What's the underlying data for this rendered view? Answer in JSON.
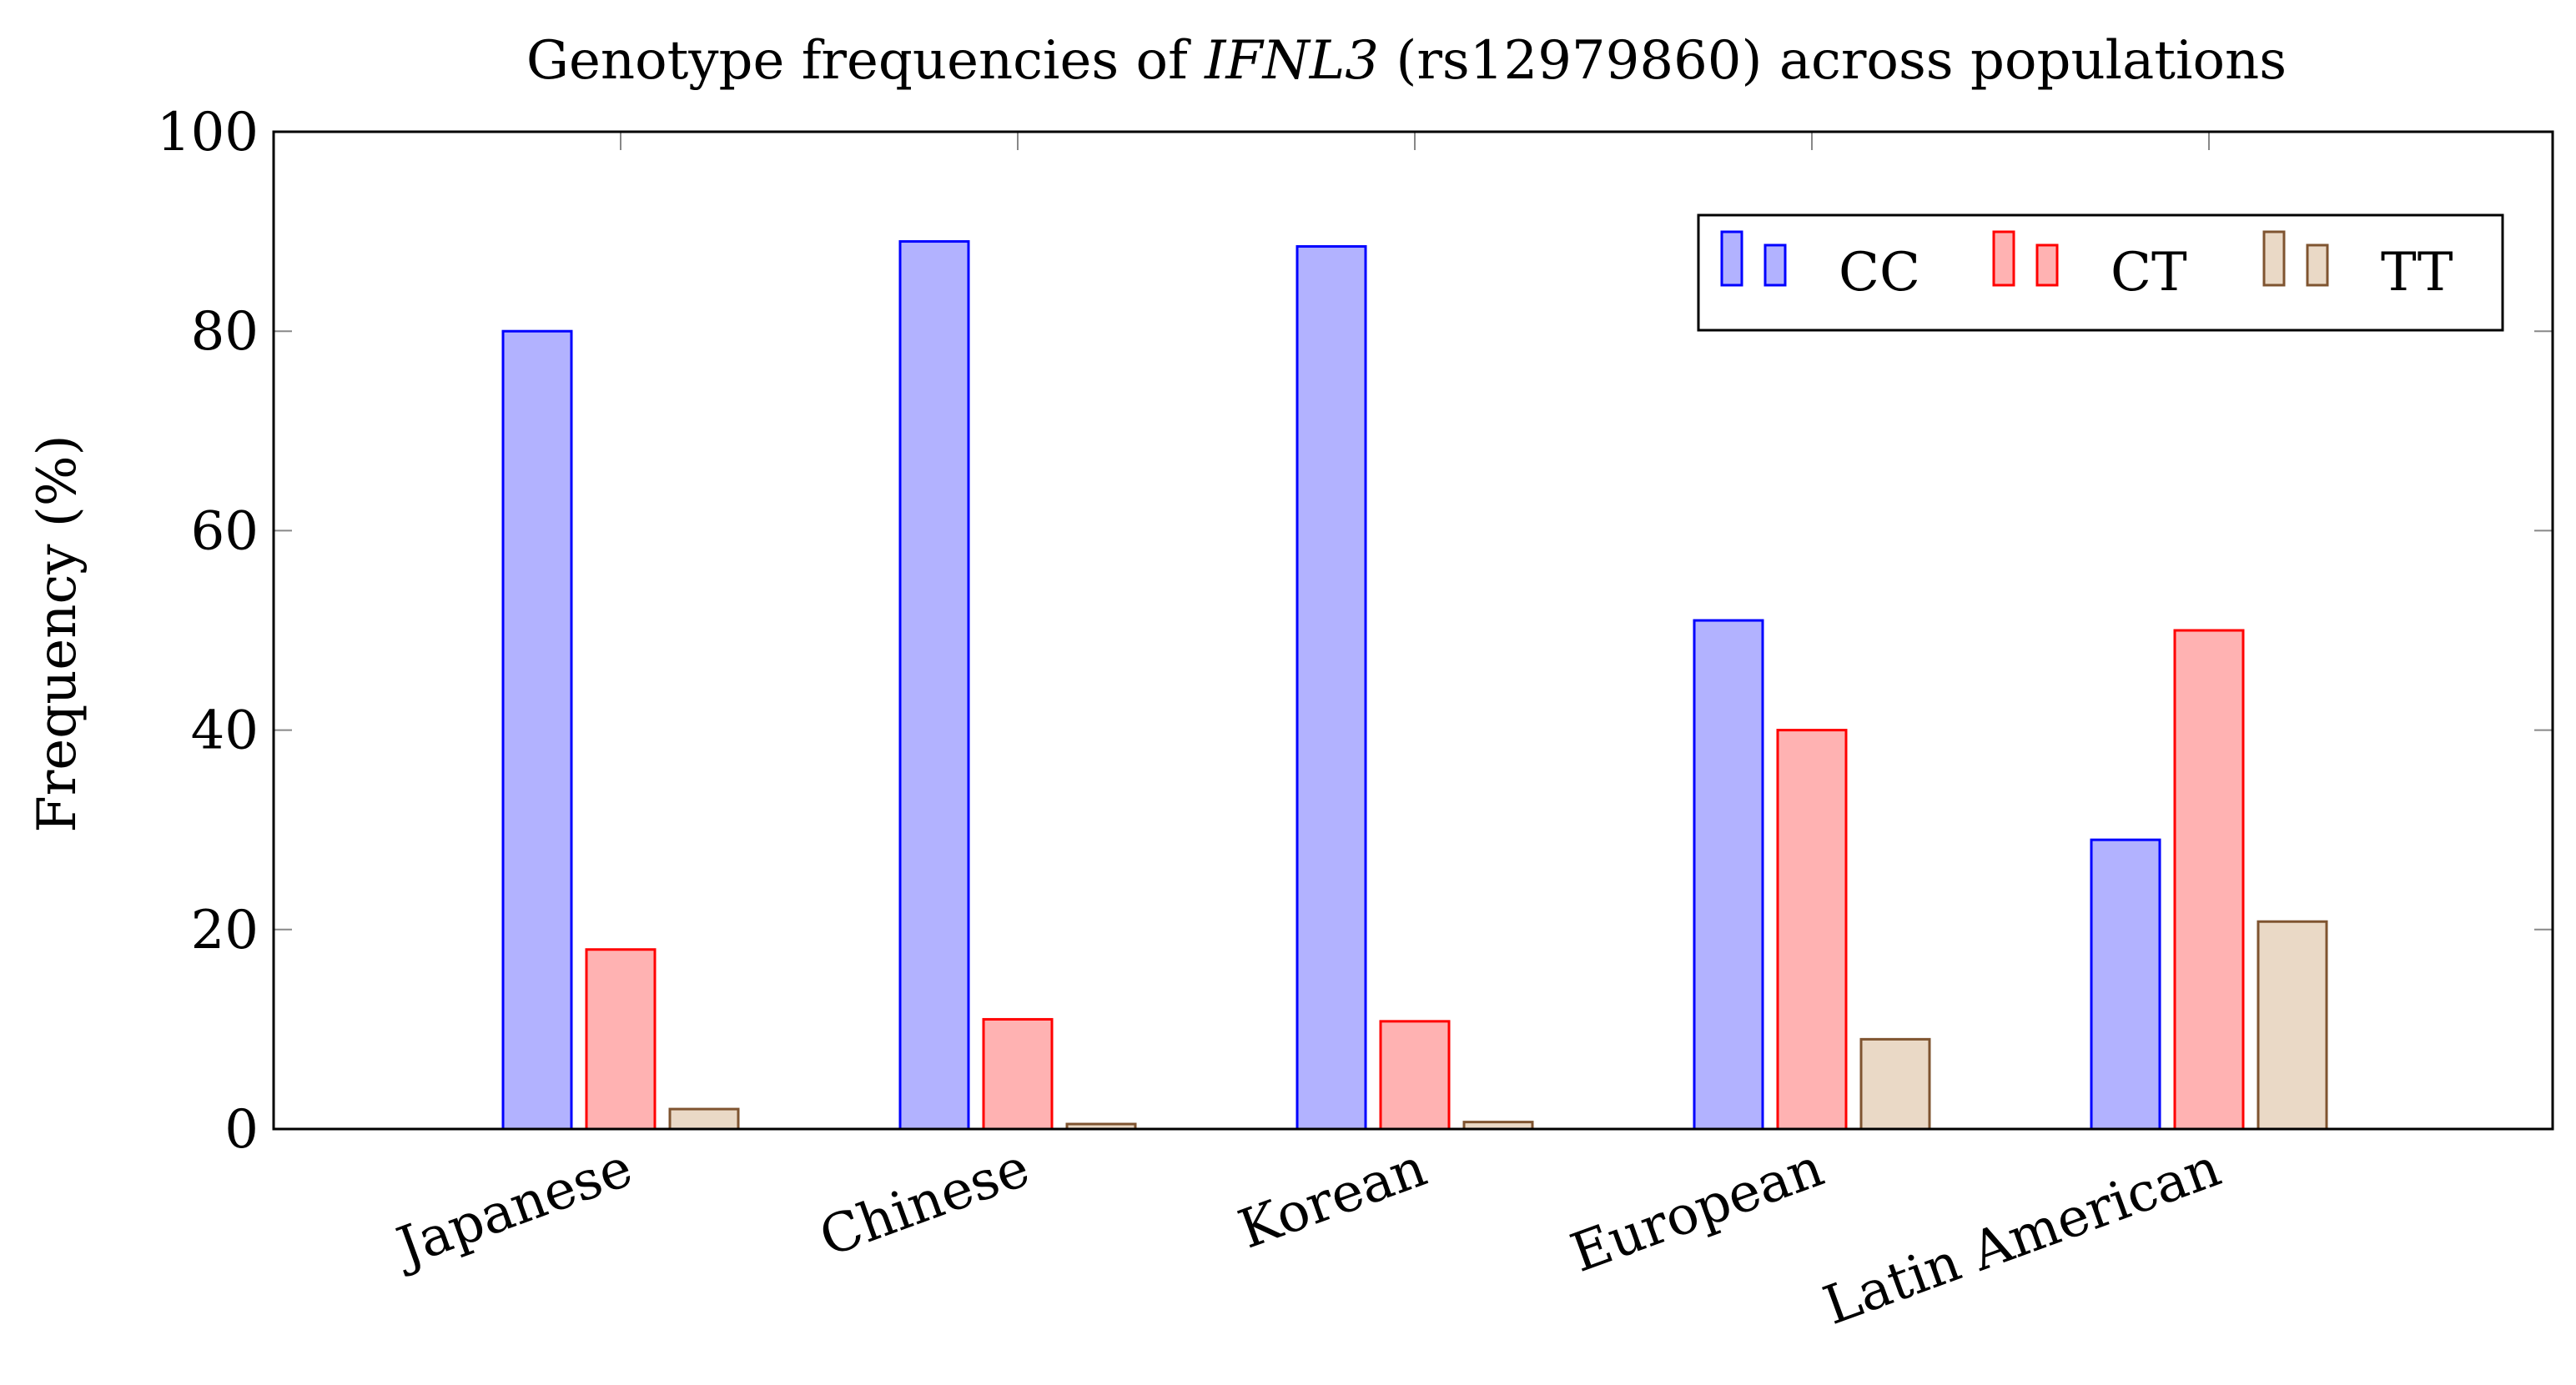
{
  "chart_data": {
    "type": "bar",
    "title": {
      "prefix": "Genotype frequencies of ",
      "gene": "IFNL3",
      "suffix": " (rs12979860) across populations"
    },
    "xlabel": "",
    "ylabel": "Frequency (%)",
    "ylim": [
      0,
      100
    ],
    "yticks": [
      "0",
      "20",
      "40",
      "60",
      "80",
      "100"
    ],
    "categories": [
      "Japanese",
      "Chinese",
      "Korean",
      "European",
      "Latin American"
    ],
    "series": [
      {
        "name": "CC",
        "values": [
          80,
          89,
          88.5,
          51,
          29
        ],
        "fill": "#b2b2ff",
        "stroke": "#0000ff"
      },
      {
        "name": "CT",
        "values": [
          18,
          11,
          10.8,
          40,
          50
        ],
        "fill": "#ffb2b2",
        "stroke": "#ff0000"
      },
      {
        "name": "TT",
        "values": [
          2,
          0.5,
          0.7,
          9,
          20.8
        ],
        "fill": "#ead9c6",
        "stroke": "#7f5430"
      }
    ],
    "grid": false,
    "legend_position": "top-right"
  }
}
